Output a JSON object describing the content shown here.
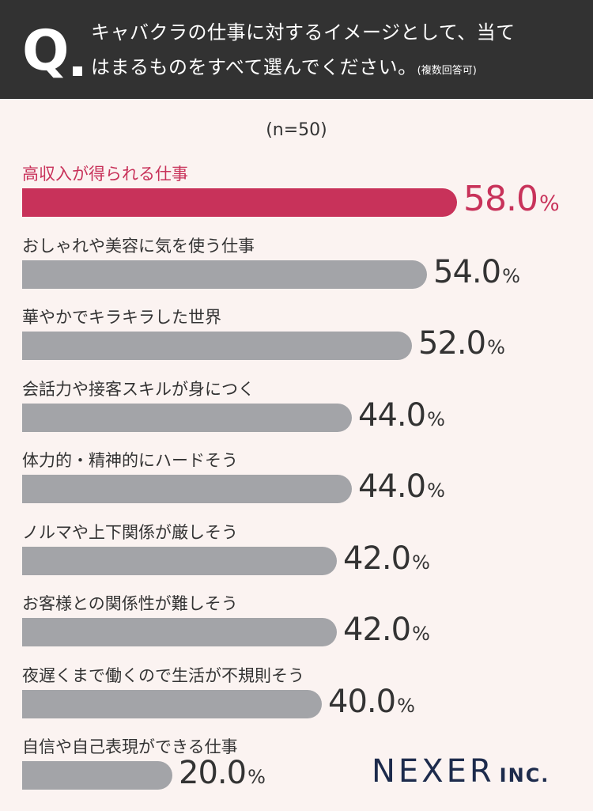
{
  "question": {
    "mark": "Q",
    "line1": "キャバクラの仕事に対するイメージとして、当て",
    "line2": "はまるものをすべて選んでください。",
    "note": "(複数回答可)"
  },
  "chart_data": {
    "type": "bar",
    "orientation": "horizontal",
    "sample": "(n=50)",
    "unit": "%",
    "categories": [
      "高収入が得られる仕事",
      "おしゃれや美容に気を使う仕事",
      "華やかでキラキラした世界",
      "会話力や接客スキルが身につく",
      "体力的・精神的にハードそう",
      "ノルマや上下関係が厳しそう",
      "お客様との関係性が難しそう",
      "夜遅くまで働くので生活が不規則そう",
      "自信や自己表現ができる仕事"
    ],
    "values": [
      58.0,
      54.0,
      52.0,
      44.0,
      44.0,
      42.0,
      42.0,
      40.0,
      20.0
    ],
    "value_labels": [
      "58.0",
      "54.0",
      "52.0",
      "44.0",
      "44.0",
      "42.0",
      "42.0",
      "40.0",
      "20.0"
    ],
    "highlight_index": 0,
    "colors": {
      "highlight": "#c8325a",
      "default": "#a3a4a8"
    }
  },
  "brand": {
    "name": "NEXER",
    "suffix": "INC."
  }
}
